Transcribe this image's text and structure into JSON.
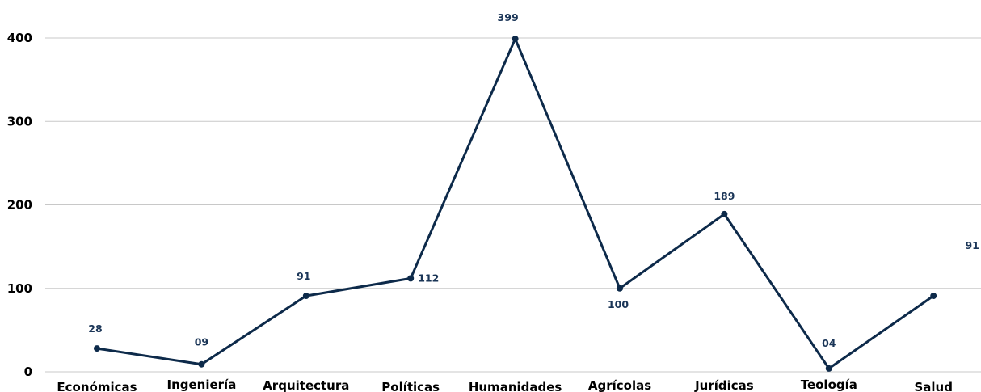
{
  "chart_data": {
    "type": "line",
    "categories": [
      "Económicas",
      "Ingeniería",
      "Arquitectura",
      "Políticas",
      "Humanidades",
      "Agrícolas",
      "Jurídicas",
      "Teología",
      "Salud"
    ],
    "values": [
      28,
      9,
      91,
      112,
      399,
      100,
      189,
      4,
      91
    ],
    "data_labels": [
      "28",
      "09",
      "91",
      "112",
      "399",
      "100",
      "189",
      "04",
      "91"
    ],
    "y_ticks": [
      "0",
      "100",
      "200",
      "300",
      "400"
    ],
    "ylim": [
      0,
      400
    ],
    "grid": true,
    "line_color": "#0d2a4a",
    "label_color": "#1a3557"
  }
}
